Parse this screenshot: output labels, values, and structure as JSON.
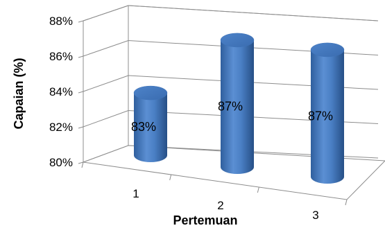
{
  "chart_data": {
    "type": "bar",
    "categories": [
      "1",
      "2",
      "3"
    ],
    "values": [
      83,
      87,
      87
    ],
    "data_labels": [
      "83%",
      "87%",
      "87%"
    ],
    "xlabel": "Pertemuan",
    "ylabel": "Capaian (%)",
    "ylim": [
      80,
      88
    ],
    "yticks": [
      "80%",
      "82%",
      "84%",
      "86%",
      "88%"
    ],
    "grid": true,
    "legend": "none",
    "style": "3d-cylinder",
    "bar_color": "#4a7fc4"
  }
}
